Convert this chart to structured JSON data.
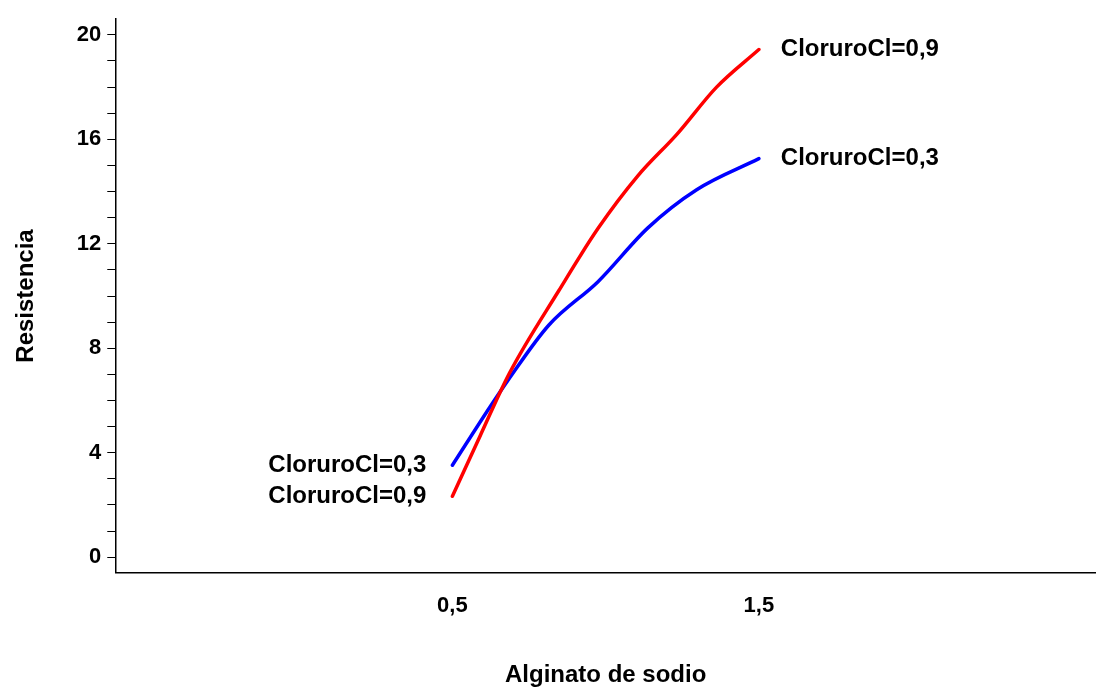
{
  "chart_data": {
    "type": "line",
    "xlabel": "Alginato de sodio",
    "ylabel": "Resistencia",
    "xlim": [
      -0.6,
      2.6
    ],
    "ylim": [
      -0.6,
      20.6
    ],
    "xticks": [
      {
        "value": 0.5,
        "label": "0,5"
      },
      {
        "value": 1.5,
        "label": "1,5"
      }
    ],
    "yticks": [
      0,
      {
        "value": 1,
        "label": null
      },
      {
        "value": 2,
        "label": null
      },
      {
        "value": 3,
        "label": null
      },
      4,
      {
        "value": 5,
        "label": null
      },
      {
        "value": 6,
        "label": null
      },
      {
        "value": 7,
        "label": null
      },
      8,
      {
        "value": 9,
        "label": null
      },
      {
        "value": 10,
        "label": null
      },
      {
        "value": 11,
        "label": null
      },
      12,
      {
        "value": 13,
        "label": null
      },
      {
        "value": 14,
        "label": null
      },
      {
        "value": 15,
        "label": null
      },
      16,
      {
        "value": 17,
        "label": null
      },
      {
        "value": 18,
        "label": null
      },
      {
        "value": 19,
        "label": null
      },
      20
    ],
    "grid": false,
    "legend": false,
    "marker": "none",
    "line_style": "solid",
    "series": [
      {
        "name": "CloruroCl=0,9",
        "color": "#ff0000",
        "x": [
          0.5,
          0.59,
          0.686,
          0.847,
          0.976,
          1.105,
          1.233,
          1.362,
          1.5
        ],
        "values": [
          2.33,
          4.63,
          7.04,
          10.2,
          12.6,
          14.6,
          16.2,
          18.0,
          19.44
        ]
      },
      {
        "name": "CloruroCl=0,3",
        "color": "#0000ff",
        "x": [
          0.5,
          0.622,
          0.686,
          0.815,
          0.976,
          1.137,
          1.297,
          1.5
        ],
        "values": [
          3.52,
          5.74,
          6.85,
          8.89,
          10.56,
          12.6,
          14.07,
          15.26
        ]
      }
    ]
  }
}
